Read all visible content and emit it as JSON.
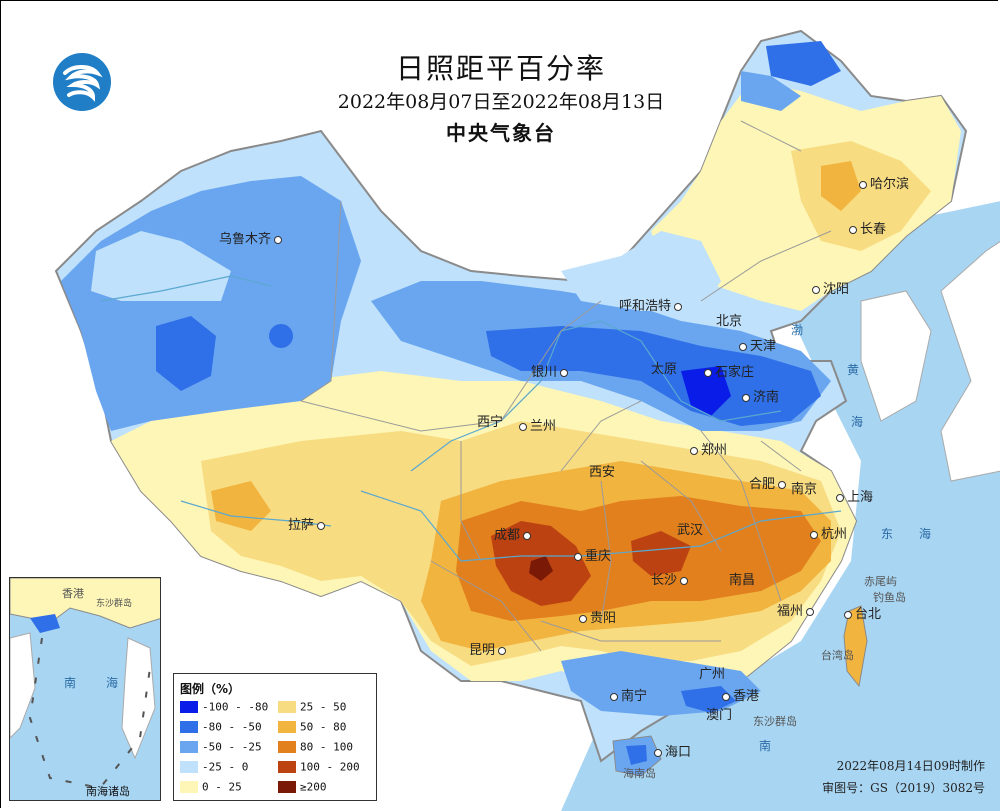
{
  "title": "日照距平百分率",
  "subtitle": "2022年08月07日至2022年08月13日",
  "agency": "中央气象台",
  "legend": {
    "title": "图例（%）",
    "items": [
      {
        "label": "-100 - -80",
        "color": "#0a1de8"
      },
      {
        "label": "-80 - -50",
        "color": "#2f6fe8"
      },
      {
        "label": "-50 - -25",
        "color": "#6aa6ef"
      },
      {
        "label": "-25 - 0",
        "color": "#bfe1fb"
      },
      {
        "label": "0 - 25",
        "color": "#fdf6b6"
      },
      {
        "label": "25 - 50",
        "color": "#f8dc82"
      },
      {
        "label": "50 - 80",
        "color": "#f1b43f"
      },
      {
        "label": "80 - 100",
        "color": "#e2801e"
      },
      {
        "label": "100 - 200",
        "color": "#bd4211"
      },
      {
        "label": "≥200",
        "color": "#7a1a06"
      }
    ]
  },
  "cities": [
    {
      "name": "乌鲁木齐"
    },
    {
      "name": "哈尔滨"
    },
    {
      "name": "长春"
    },
    {
      "name": "沈阳"
    },
    {
      "name": "呼和浩特"
    },
    {
      "name": "北京"
    },
    {
      "name": "天津"
    },
    {
      "name": "银川"
    },
    {
      "name": "太原"
    },
    {
      "name": "石家庄"
    },
    {
      "name": "济南"
    },
    {
      "name": "西宁"
    },
    {
      "name": "兰州"
    },
    {
      "name": "郑州"
    },
    {
      "name": "西安"
    },
    {
      "name": "合肥"
    },
    {
      "name": "南京"
    },
    {
      "name": "上海"
    },
    {
      "name": "拉萨"
    },
    {
      "name": "成都"
    },
    {
      "name": "武汉"
    },
    {
      "name": "杭州"
    },
    {
      "name": "重庆"
    },
    {
      "name": "长沙"
    },
    {
      "name": "南昌"
    },
    {
      "name": "贵阳"
    },
    {
      "name": "福州"
    },
    {
      "name": "台北"
    },
    {
      "name": "昆明"
    },
    {
      "name": "广州"
    },
    {
      "name": "南宁"
    },
    {
      "name": "香港"
    },
    {
      "name": "澳门"
    },
    {
      "name": "海口"
    }
  ],
  "islands": {
    "diaoyu": "钓鱼岛",
    "chiwei": "赤尾屿",
    "taiwan": "台湾岛",
    "dongsha": "东沙群岛",
    "hainan": "海南岛",
    "south_sea_islands": "南海诸岛"
  },
  "inset_labels": {
    "xianggang": "香港",
    "dongsha": "东沙群岛",
    "nanhai": "南",
    "hai": "海"
  },
  "water": {
    "huang": "黄",
    "hai1": "海",
    "dong": "东",
    "hai2": "海",
    "hai3": "海",
    "nan": "南",
    "hai4": "海",
    "bo": "渤",
    "hai5": "海"
  },
  "footer": {
    "made": "2022年08月14日09时制作",
    "approval": "审图号：GS（2019）3082号"
  },
  "colors": {
    "sea": "#a8d5f2",
    "border": "#8a8a8a"
  }
}
